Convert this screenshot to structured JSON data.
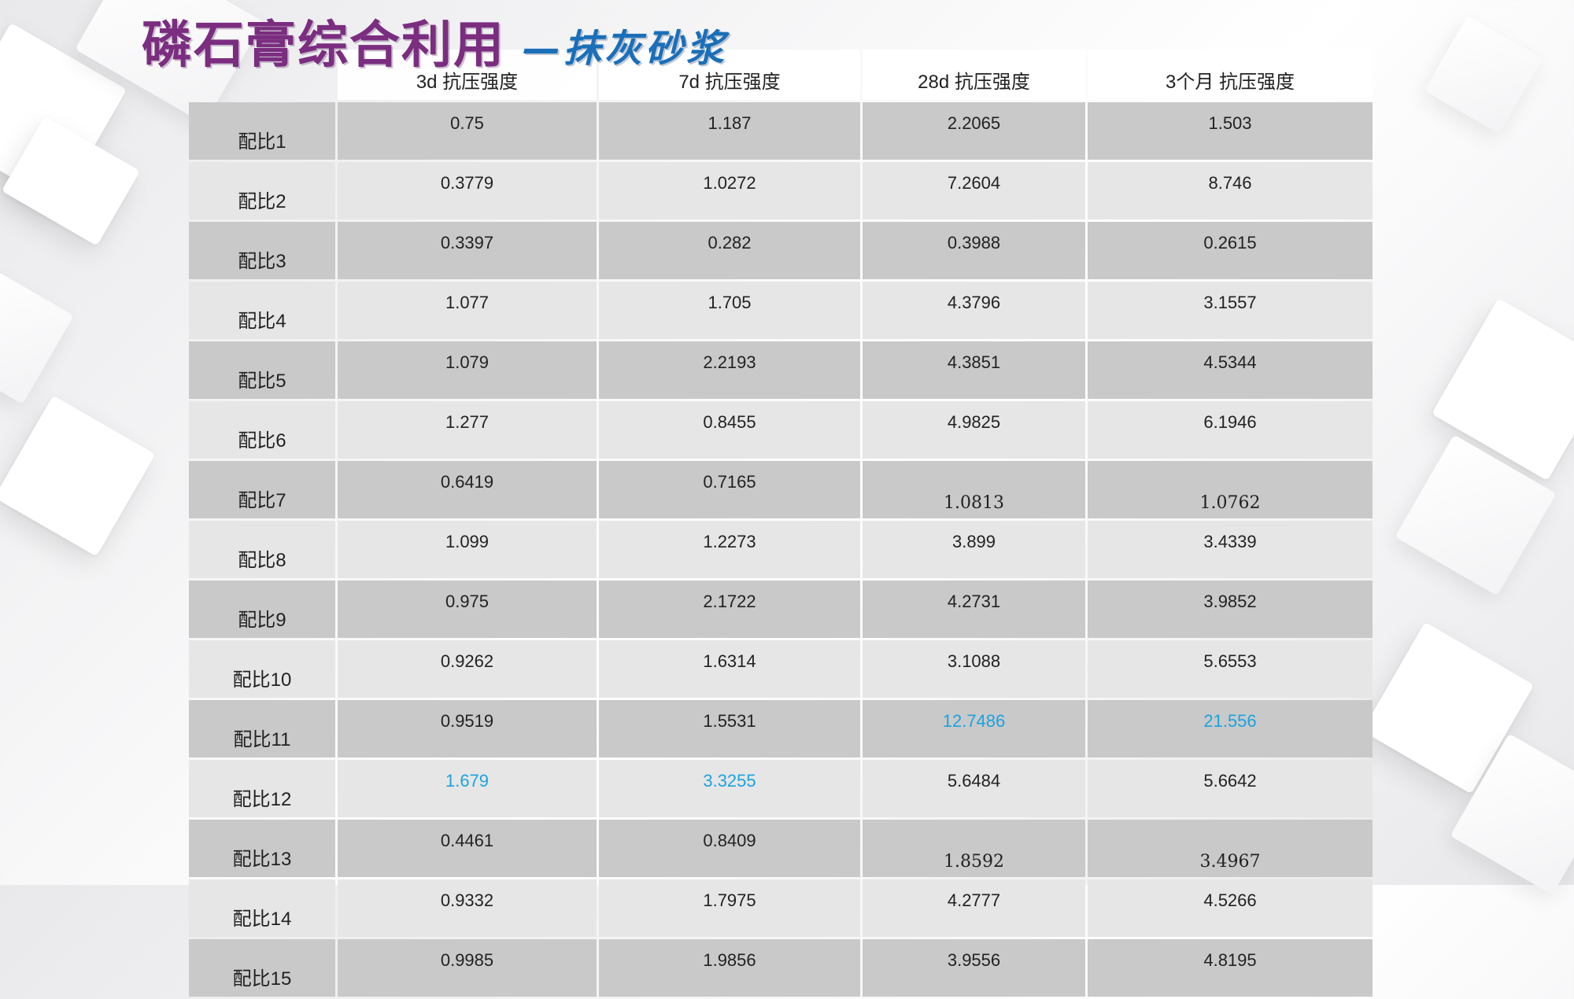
{
  "slide": {
    "title_main": "磷石膏综合利用",
    "title_sub": "—抹灰砂浆"
  },
  "table": {
    "headers": [
      "",
      "3d 抗压强度",
      "7d 抗压强度",
      "28d 抗压强度",
      "3个月 抗压强度"
    ],
    "rows": [
      {
        "label": "配比1",
        "values": [
          "0.75",
          "1.187",
          "2.2065",
          "1.503"
        ]
      },
      {
        "label": "配比2",
        "values": [
          "0.3779",
          "1.0272",
          "7.2604",
          "8.746"
        ]
      },
      {
        "label": "配比3",
        "values": [
          "0.3397",
          "0.282",
          "0.3988",
          "0.2615"
        ]
      },
      {
        "label": "配比4",
        "values": [
          "1.077",
          "1.705",
          "4.3796",
          "3.1557"
        ]
      },
      {
        "label": "配比5",
        "values": [
          "1.079",
          "2.2193",
          "4.3851",
          "4.5344"
        ]
      },
      {
        "label": "配比6",
        "values": [
          "1.277",
          "0.8455",
          "4.9825",
          "6.1946"
        ]
      },
      {
        "label": "配比7",
        "values": [
          "0.6419",
          "0.7165",
          "1.0813",
          "1.0762"
        ]
      },
      {
        "label": "配比8",
        "values": [
          "1.099",
          "1.2273",
          "3.899",
          "3.4339"
        ]
      },
      {
        "label": "配比9",
        "values": [
          "0.975",
          "2.1722",
          "4.2731",
          "3.9852"
        ]
      },
      {
        "label": "配比10",
        "values": [
          "0.9262",
          "1.6314",
          "3.1088",
          "5.6553"
        ]
      },
      {
        "label": "配比11",
        "values": [
          "0.9519",
          "1.5531",
          "12.7486",
          "21.556"
        ]
      },
      {
        "label": "配比12",
        "values": [
          "1.679",
          "3.3255",
          "5.6484",
          "5.6642"
        ]
      },
      {
        "label": "配比13",
        "values": [
          "0.4461",
          "0.8409",
          "1.8592",
          "3.4967"
        ]
      },
      {
        "label": "配比14",
        "values": [
          "0.9332",
          "1.7975",
          "4.2777",
          "4.5266"
        ]
      },
      {
        "label": "配比15",
        "values": [
          "0.9985",
          "1.9856",
          "3.9556",
          "4.8195"
        ]
      }
    ]
  },
  "colors": {
    "title_main": "#7b2d80",
    "title_sub": "#1a6fb8",
    "highlight": "#1aa3e0",
    "row_dark": "#c9c9c9",
    "row_light": "#e6e6e6"
  }
}
